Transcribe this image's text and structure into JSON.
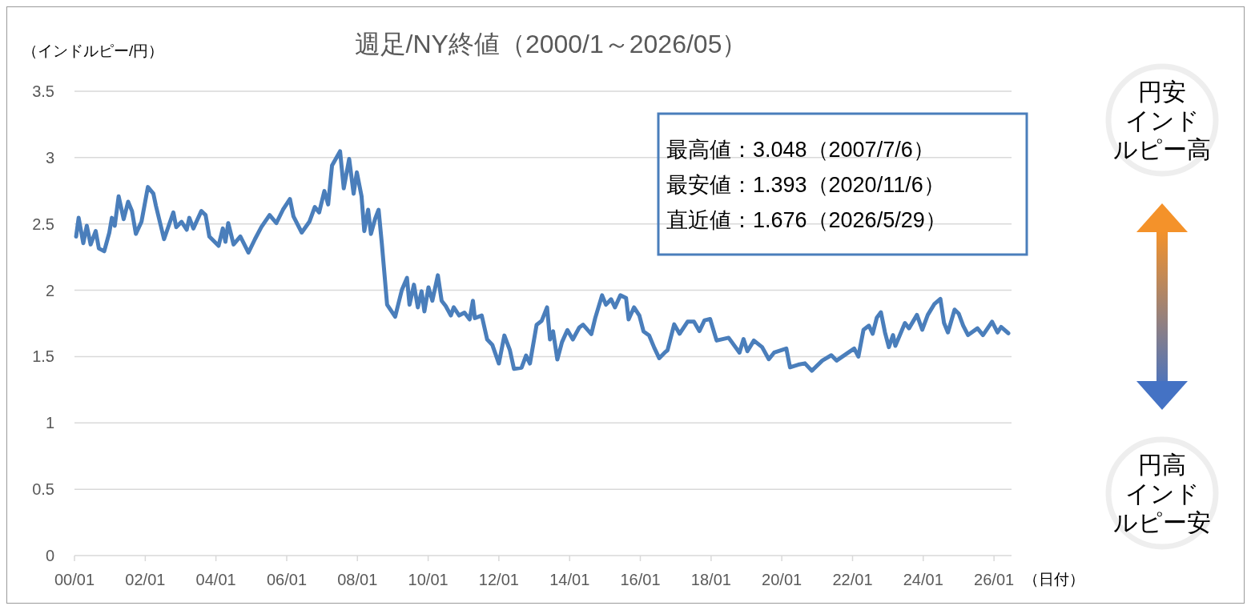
{
  "chart_data": {
    "type": "line",
    "title": "週足/NY終値（2000/1～2026/05）",
    "ylabel": "（インドルピー/円）",
    "xlabel": "（日付）",
    "annotations": [
      "最高値：3.048（2007/7/6）",
      "最安値：1.393（2020/11/6）",
      "直近値：1.676（2026/5/29）",
      "円安インドルピー高",
      "円高インドルピー安"
    ],
    "xlim": [
      "2000-01-01",
      "2026-07-01"
    ],
    "xticks": [
      {
        "value": "2000-01-01",
        "label": "00/01"
      },
      {
        "value": "2002-01-01",
        "label": "02/01"
      },
      {
        "value": "2004-01-01",
        "label": "04/01"
      },
      {
        "value": "2006-01-01",
        "label": "06/01"
      },
      {
        "value": "2008-01-01",
        "label": "08/01"
      },
      {
        "value": "2010-01-01",
        "label": "10/01"
      },
      {
        "value": "2012-01-01",
        "label": "12/01"
      },
      {
        "value": "2014-01-01",
        "label": "14/01"
      },
      {
        "value": "2016-01-01",
        "label": "16/01"
      },
      {
        "value": "2018-01-01",
        "label": "18/01"
      },
      {
        "value": "2020-01-01",
        "label": "20/01"
      },
      {
        "value": "2022-01-01",
        "label": "22/01"
      },
      {
        "value": "2024-01-01",
        "label": "24/01"
      },
      {
        "value": "2026-01-01",
        "label": "26/01"
      }
    ],
    "ylim": [
      0,
      3.5
    ],
    "yticks": [
      0,
      0.5,
      1,
      1.5,
      2,
      2.5,
      3,
      3.5
    ],
    "grid": "y",
    "marker": "none",
    "line_style": "solid",
    "series": [
      {
        "color": "#4a7ebb",
        "x": [
          "2000-01-18",
          "2000-02-13",
          "2000-04-01",
          "2000-05-07",
          "2000-06-16",
          "2000-08-07",
          "2000-09-09",
          "2000-11-03",
          "2000-12-26",
          "2001-01-21",
          "2001-02-20",
          "2001-04-01",
          "2001-05-23",
          "2001-07-08",
          "2001-08-17",
          "2001-09-26",
          "2001-11-23",
          "2002-01-28",
          "2002-03-26",
          "2002-04-21",
          "2002-07-14",
          "2002-10-18",
          "2002-11-17",
          "2003-01-11",
          "2003-03-05",
          "2003-04-01",
          "2003-05-13",
          "2003-08-03",
          "2003-09-16",
          "2003-10-25",
          "2004-01-28",
          "2004-03-12",
          "2004-04-08",
          "2004-05-07",
          "2004-07-01",
          "2004-09-09",
          "2004-12-02",
          "2005-02-07",
          "2005-04-14",
          "2005-07-08",
          "2005-09-16",
          "2005-11-23",
          "2006-02-03",
          "2006-03-12",
          "2006-06-05",
          "2006-08-23",
          "2006-10-18",
          "2006-12-02",
          "2007-01-25",
          "2007-03-05",
          "2007-04-14",
          "2007-07-06",
          "2007-08-13",
          "2007-10-08",
          "2007-11-23",
          "2007-12-26",
          "2008-02-13",
          "2008-03-12",
          "2008-04-21",
          "2008-05-20",
          "2008-07-01",
          "2008-08-07",
          "2008-09-09",
          "2008-11-03",
          "2009-01-25",
          "2009-04-04",
          "2009-05-27",
          "2009-06-22",
          "2009-08-07",
          "2009-09-16",
          "2009-10-25",
          "2009-11-23",
          "2010-01-04",
          "2010-02-13",
          "2010-04-11",
          "2010-05-20",
          "2010-07-01",
          "2010-08-23",
          "2010-09-22",
          "2010-11-17",
          "2011-01-11",
          "2011-03-05",
          "2011-04-08",
          "2011-04-28",
          "2011-07-08",
          "2011-09-02",
          "2011-10-25",
          "2012-01-01",
          "2012-02-27",
          "2012-04-24",
          "2012-06-05",
          "2012-08-23",
          "2012-10-08",
          "2012-11-17",
          "2013-01-25",
          "2013-03-19",
          "2013-05-13",
          "2013-06-12",
          "2013-07-14",
          "2013-08-27",
          "2013-10-14",
          "2013-12-09",
          "2014-02-03",
          "2014-04-11",
          "2014-05-20",
          "2014-08-13",
          "2014-09-22",
          "2014-12-02",
          "2015-01-11",
          "2015-03-05",
          "2015-04-14",
          "2015-06-09",
          "2015-08-07",
          "2015-09-02",
          "2015-10-28",
          "2015-12-22",
          "2016-02-03",
          "2016-04-01",
          "2016-05-23",
          "2016-07-14",
          "2016-09-09",
          "2016-10-08",
          "2016-12-16",
          "2017-02-10",
          "2017-05-03",
          "2017-07-08",
          "2017-09-02",
          "2017-10-25",
          "2017-12-22",
          "2018-02-27",
          "2018-07-01",
          "2018-10-21",
          "2018-12-02",
          "2019-01-11",
          "2019-03-19",
          "2019-06-12",
          "2019-08-20",
          "2019-10-14",
          "2020-02-17",
          "2020-03-26",
          "2020-06-19",
          "2020-08-27",
          "2020-11-06",
          "2021-02-23",
          "2021-05-27",
          "2021-07-21",
          "2021-10-28",
          "2022-01-18",
          "2022-03-02",
          "2022-04-24",
          "2022-06-19",
          "2022-07-28",
          "2022-09-09",
          "2022-10-21",
          "2022-12-02",
          "2023-01-11",
          "2023-02-23",
          "2023-03-19",
          "2023-06-26",
          "2023-08-07",
          "2023-10-28",
          "2023-12-22",
          "2024-02-17",
          "2024-04-24",
          "2024-06-26",
          "2024-08-03",
          "2024-09-12",
          "2024-11-20",
          "2025-01-01",
          "2025-02-17",
          "2025-04-08",
          "2025-07-14",
          "2025-09-09",
          "2025-12-12",
          "2026-02-07",
          "2026-03-15",
          "2026-05-29"
        ],
        "values": [
          2.405,
          2.546,
          2.355,
          2.486,
          2.345,
          2.446,
          2.315,
          2.294,
          2.435,
          2.546,
          2.486,
          2.708,
          2.536,
          2.667,
          2.597,
          2.425,
          2.516,
          2.778,
          2.728,
          2.637,
          2.385,
          2.587,
          2.476,
          2.516,
          2.456,
          2.546,
          2.466,
          2.597,
          2.567,
          2.405,
          2.335,
          2.466,
          2.365,
          2.506,
          2.345,
          2.405,
          2.284,
          2.385,
          2.476,
          2.567,
          2.506,
          2.607,
          2.688,
          2.556,
          2.435,
          2.516,
          2.627,
          2.587,
          2.748,
          2.647,
          2.94,
          3.048,
          2.768,
          2.99,
          2.728,
          2.889,
          2.708,
          2.446,
          2.607,
          2.425,
          2.536,
          2.607,
          2.355,
          1.891,
          1.8,
          2.002,
          2.093,
          1.891,
          2.042,
          1.871,
          1.992,
          1.841,
          2.022,
          1.921,
          2.113,
          1.921,
          1.881,
          1.81,
          1.871,
          1.81,
          1.831,
          1.78,
          1.921,
          1.79,
          1.81,
          1.629,
          1.589,
          1.448,
          1.659,
          1.548,
          1.407,
          1.417,
          1.508,
          1.448,
          1.74,
          1.77,
          1.871,
          1.629,
          1.69,
          1.478,
          1.609,
          1.7,
          1.629,
          1.72,
          1.74,
          1.669,
          1.79,
          1.962,
          1.891,
          1.932,
          1.871,
          1.962,
          1.942,
          1.78,
          1.871,
          1.81,
          1.69,
          1.659,
          1.568,
          1.488,
          1.53,
          1.548,
          1.743,
          1.672,
          1.763,
          1.763,
          1.692,
          1.773,
          1.783,
          1.621,
          1.642,
          1.53,
          1.632,
          1.54,
          1.621,
          1.571,
          1.48,
          1.53,
          1.561,
          1.419,
          1.439,
          1.449,
          1.393,
          1.47,
          1.51,
          1.47,
          1.52,
          1.561,
          1.5,
          1.702,
          1.733,
          1.672,
          1.794,
          1.834,
          1.682,
          1.571,
          1.662,
          1.581,
          1.753,
          1.713,
          1.814,
          1.702,
          1.814,
          1.895,
          1.935,
          1.753,
          1.682,
          1.854,
          1.824,
          1.733,
          1.662,
          1.713,
          1.662,
          1.763,
          1.682,
          1.723,
          1.676
        ]
      }
    ]
  }
}
